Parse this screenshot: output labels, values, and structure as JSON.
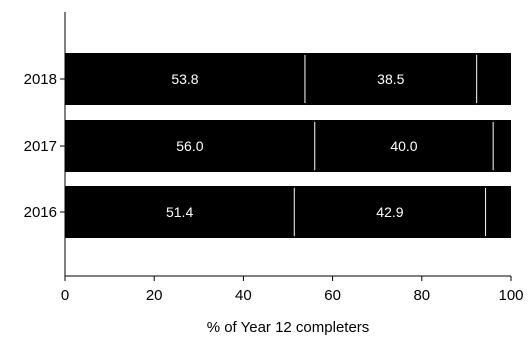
{
  "chart_data": {
    "type": "bar",
    "orientation": "horizontal",
    "stacked": true,
    "categories": [
      "2018",
      "2017",
      "2016"
    ],
    "series": [
      {
        "values": [
          53.8,
          56.0,
          51.4
        ],
        "labels": [
          "53.8",
          "56.0",
          "51.4"
        ],
        "color": "#000000"
      },
      {
        "values": [
          38.5,
          40.0,
          42.9
        ],
        "labels": [
          "38.5",
          "40.0",
          "42.9"
        ],
        "color": "#000000"
      },
      {
        "values": [
          7.7,
          4.0,
          5.7
        ],
        "color": "#000000"
      }
    ],
    "xlabel": "% of Year 12 completers",
    "ylabel": "",
    "xlim": [
      0,
      100
    ],
    "xticks": [
      "0",
      "20",
      "40",
      "60",
      "80",
      "100"
    ],
    "grid": false,
    "legend": "none",
    "separator_color": "#ffffff"
  }
}
